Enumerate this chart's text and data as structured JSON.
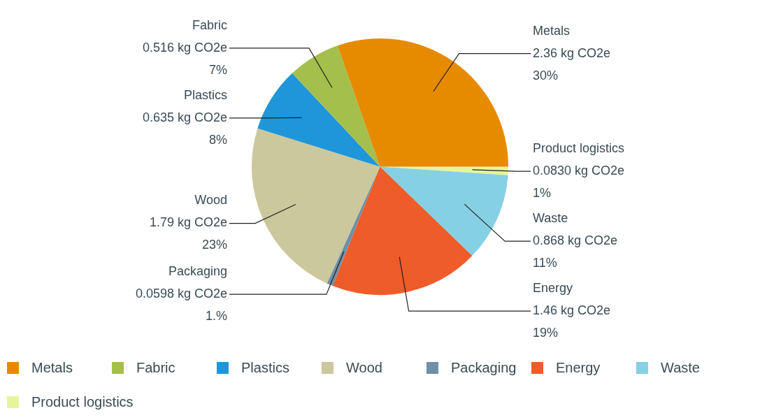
{
  "chart_data": {
    "type": "pie",
    "categories": [
      "Metals",
      "Fabric",
      "Plastics",
      "Wood",
      "Packaging",
      "Energy",
      "Waste",
      "Product logistics"
    ],
    "values": [
      2.36,
      0.516,
      0.635,
      1.79,
      0.0598,
      1.46,
      0.868,
      0.083
    ],
    "value_labels": [
      "2.36 kg CO2e\n30%",
      "0.516 kg CO2e\n7%",
      "0.635 kg CO2e\n8%",
      "1.79 kg CO2e\n23%",
      "0.0598 kg CO2e\n1.%",
      "1.46 kg CO2e\n19%",
      "0.868 kg CO2e\n11%",
      "0.0830 kg CO2e\n1%"
    ],
    "colors": [
      "#e68a00",
      "#a4bf4c",
      "#1f96d9",
      "#cbc89e",
      "#6e90a8",
      "#ee5c2a",
      "#86d0e3",
      "#e6f59b"
    ],
    "legend": "bottom"
  }
}
